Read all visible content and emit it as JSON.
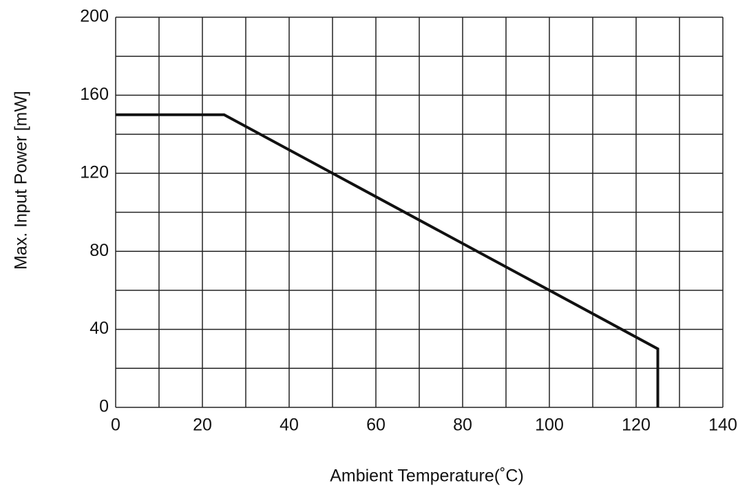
{
  "chart_data": {
    "type": "line",
    "x_label": "Ambient Temperature(˚C)",
    "y_label": "Max. Input Power [mW]",
    "x": [
      0,
      25,
      125,
      125
    ],
    "values": [
      150,
      150,
      30,
      0
    ],
    "color": "#111111",
    "xlim": [
      0,
      140
    ],
    "ylim": [
      0,
      200
    ],
    "xticks": [
      0,
      20,
      40,
      60,
      80,
      100,
      120,
      140
    ],
    "yticks": [
      0,
      40,
      80,
      120,
      160,
      200
    ],
    "xgrid": [
      0,
      10,
      20,
      30,
      40,
      50,
      60,
      70,
      80,
      90,
      100,
      110,
      120,
      130,
      140
    ],
    "ygrid": [
      0,
      20,
      40,
      60,
      80,
      100,
      120,
      140,
      160,
      180,
      200
    ],
    "grid": true
  }
}
